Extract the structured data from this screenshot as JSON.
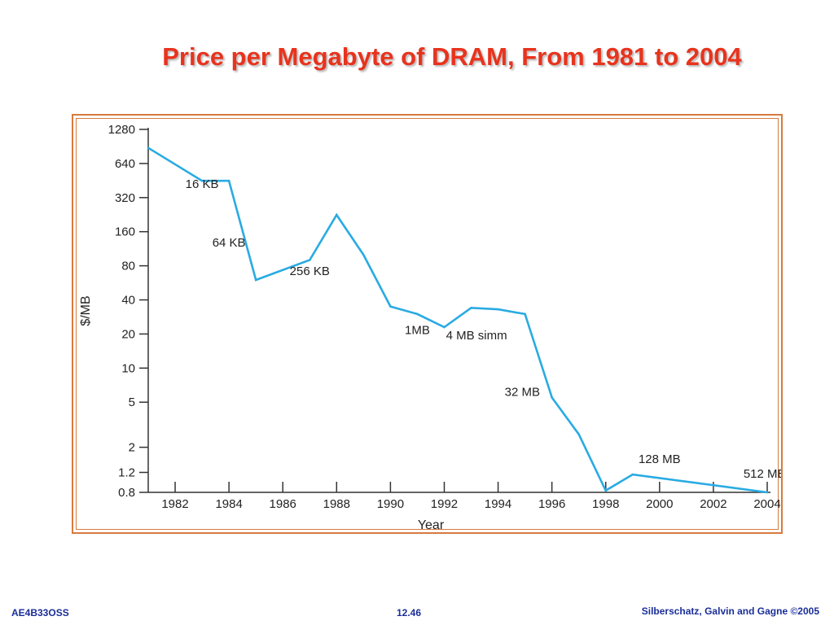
{
  "slide": {
    "title": "Price per Megabyte of DRAM, From 1981 to 2004",
    "footer_left": "AE4B33OSS",
    "footer_center": "12.46",
    "footer_right": "Silberschatz, Galvin and Gagne ©2005"
  },
  "colors": {
    "title": "#e8331d",
    "frame": "#d77a3e",
    "line": "#29abe2",
    "footer": "#1a2e99"
  },
  "chart_data": {
    "type": "line",
    "xlabel": "Year",
    "ylabel": "$/MB",
    "y_scale": "log",
    "grid": false,
    "xlim": [
      1981,
      2004
    ],
    "ylim": [
      0.8,
      1280
    ],
    "x_ticks": [
      1982,
      1984,
      1986,
      1988,
      1990,
      1992,
      1994,
      1996,
      1998,
      2000,
      2002,
      2004
    ],
    "y_ticks": [
      {
        "value": 0.8,
        "label": "0.8"
      },
      {
        "value": 1.2,
        "label": "1.2"
      },
      {
        "value": 2,
        "label": "2"
      },
      {
        "value": 5,
        "label": "5"
      },
      {
        "value": 10,
        "label": "10"
      },
      {
        "value": 20,
        "label": "20"
      },
      {
        "value": 40,
        "label": "40"
      },
      {
        "value": 80,
        "label": "80"
      },
      {
        "value": 160,
        "label": "160"
      },
      {
        "value": 320,
        "label": "320"
      },
      {
        "value": 640,
        "label": "640"
      },
      {
        "value": 1280,
        "label": "1280"
      }
    ],
    "x": [
      1981,
      1983,
      1984,
      1985,
      1987,
      1988,
      1989,
      1990,
      1991,
      1992,
      1993,
      1994,
      1995,
      1996,
      1997,
      1998,
      1999,
      2004
    ],
    "y": [
      880,
      450,
      450,
      60,
      90,
      225,
      100,
      35,
      30,
      23,
      34,
      33,
      30,
      5.5,
      2.6,
      0.83,
      1.15,
      0.8
    ],
    "annotations": [
      {
        "text": "16 KB",
        "x": 1983,
        "y": 390
      },
      {
        "text": "64 KB",
        "x": 1984,
        "y": 118
      },
      {
        "text": "256 KB",
        "x": 1987,
        "y": 66
      },
      {
        "text": "1MB",
        "x": 1991,
        "y": 20
      },
      {
        "text": "4 MB simm",
        "x": 1993.2,
        "y": 18
      },
      {
        "text": "32 MB",
        "x": 1994.9,
        "y": 5.7
      },
      {
        "text": "128 MB",
        "x": 2000,
        "y": 1.45
      },
      {
        "text": "512 MB",
        "x": 2003.9,
        "y": 1.08
      }
    ]
  }
}
